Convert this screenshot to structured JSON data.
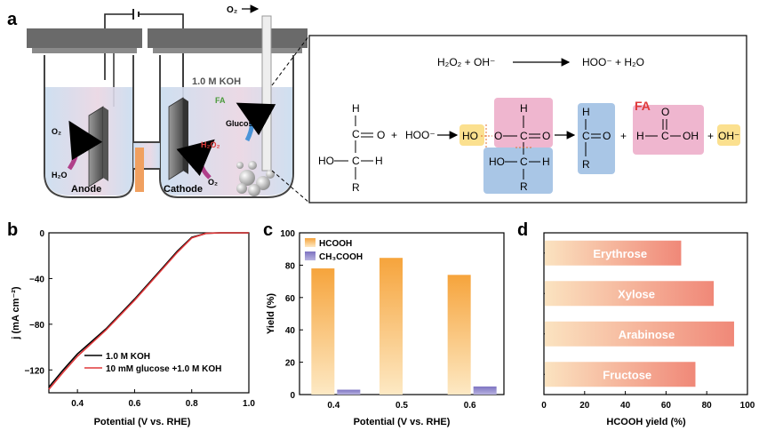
{
  "panel_a": {
    "label": "a",
    "o2_gas": "O₂",
    "electrolyte": "1.0 M KOH",
    "fa": "FA",
    "glucose": "Glucose",
    "h2o2": "H₂O₂",
    "o2_anode": "O₂",
    "h2o_anode": "H₂O",
    "o2_cathode": "O₂",
    "anode": "Anode",
    "cathode": "Cathode",
    "eq1": {
      "reactant": "H₂O₂ + OH⁻",
      "product": "HOO⁻ + H₂O"
    },
    "mechanism": {
      "h": "H",
      "c": "C",
      "o": "O",
      "ho": "HO",
      "r": "R",
      "oh": "OH",
      "plus": "+",
      "hoo": "HOO⁻",
      "fa_label": "FA",
      "oh_minus": "OH⁻"
    }
  },
  "panel_b": {
    "label": "b",
    "chart_data": {
      "type": "line",
      "title": "",
      "xlabel": "Potential (V vs. RHE)",
      "ylabel": "j (mA cm⁻²)",
      "xlim": [
        0.3,
        1.0
      ],
      "ylim": [
        -140,
        0
      ],
      "xticks": [
        "0.4",
        "0.6",
        "0.8",
        "1.0"
      ],
      "yticks": [
        "0",
        "−40",
        "−80",
        "−120"
      ],
      "series": [
        {
          "name": "1.0 M KOH",
          "color": "#000000",
          "x": [
            0.3,
            0.35,
            0.4,
            0.5,
            0.6,
            0.7,
            0.75,
            0.8,
            0.85,
            0.9,
            1.0
          ],
          "y": [
            -135,
            -120,
            -106,
            -84,
            -58,
            -30,
            -16,
            -4,
            -0.5,
            0,
            0
          ]
        },
        {
          "name": "10 mM glucose +1.0 M KOH",
          "color": "#e0383a",
          "x": [
            0.3,
            0.35,
            0.4,
            0.5,
            0.6,
            0.7,
            0.75,
            0.8,
            0.85,
            0.9,
            1.0
          ],
          "y": [
            -137,
            -122,
            -108,
            -85,
            -59,
            -31,
            -17,
            -4.5,
            -0.5,
            0,
            0
          ]
        }
      ]
    }
  },
  "panel_c": {
    "label": "c",
    "chart_data": {
      "type": "bar",
      "title": "",
      "xlabel": "Potential (V vs. RHE)",
      "ylabel": "Yield (%)",
      "ylim": [
        0,
        100
      ],
      "categories": [
        "0.4",
        "0.5",
        "0.6"
      ],
      "yticks": [
        "0",
        "20",
        "40",
        "60",
        "80",
        "100"
      ],
      "series": [
        {
          "name": "HCOOH",
          "color": "#f5a542",
          "values": [
            78,
            84.5,
            74
          ]
        },
        {
          "name": "CH₃COOH",
          "color": "#8c84c8",
          "values": [
            3,
            0,
            5
          ]
        }
      ]
    }
  },
  "panel_d": {
    "label": "d",
    "chart_data": {
      "type": "bar",
      "orientation": "horizontal",
      "title": "",
      "xlabel": "HCOOH yield (%)",
      "xlim": [
        0,
        100
      ],
      "xticks": [
        "0",
        "20",
        "40",
        "60",
        "80",
        "100"
      ],
      "categories": [
        "Erythrose",
        "Xylose",
        "Arabinose",
        "Fructose"
      ],
      "values": [
        67,
        83,
        93,
        74
      ],
      "color": "#f08a78"
    }
  }
}
